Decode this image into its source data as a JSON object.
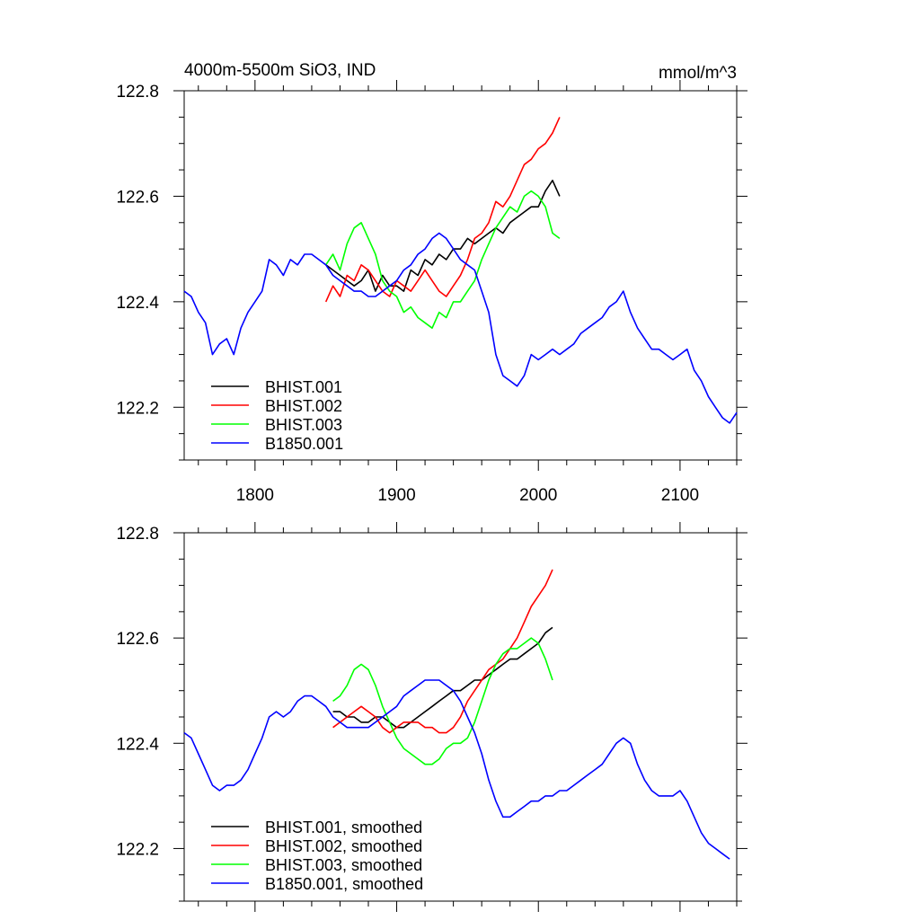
{
  "figure": {
    "title_left": "4000m-5500m SiO3, IND",
    "title_right": "mmol/m^3"
  },
  "chart_data": [
    {
      "type": "line",
      "xlim": [
        1750,
        2140
      ],
      "ylim": [
        122.1,
        122.8
      ],
      "xticks": [
        1800,
        1900,
        2000,
        2100
      ],
      "xtick_labels": [
        "1800",
        "1900",
        "2000",
        "2100"
      ],
      "yticks": [
        122.2,
        122.4,
        122.6,
        122.8
      ],
      "ytick_labels": [
        "122.2",
        "122.4",
        "122.6",
        "122.8"
      ],
      "legend_position": "bottom-left",
      "series": [
        {
          "name": "BHIST.001",
          "color": "#000000",
          "x": [
            1850,
            1855,
            1860,
            1865,
            1870,
            1875,
            1880,
            1885,
            1890,
            1895,
            1900,
            1905,
            1910,
            1915,
            1920,
            1925,
            1930,
            1935,
            1940,
            1945,
            1950,
            1955,
            1960,
            1965,
            1970,
            1975,
            1980,
            1985,
            1990,
            1995,
            2000,
            2005,
            2010,
            2015
          ],
          "y": [
            122.47,
            122.46,
            122.45,
            122.44,
            122.43,
            122.44,
            122.46,
            122.42,
            122.45,
            122.43,
            122.43,
            122.42,
            122.46,
            122.45,
            122.48,
            122.47,
            122.49,
            122.48,
            122.5,
            122.5,
            122.52,
            122.51,
            122.52,
            122.53,
            122.54,
            122.53,
            122.55,
            122.56,
            122.57,
            122.58,
            122.58,
            122.61,
            122.63,
            122.6
          ]
        },
        {
          "name": "BHIST.002",
          "color": "#ff0000",
          "x": [
            1850,
            1855,
            1860,
            1865,
            1870,
            1875,
            1880,
            1885,
            1890,
            1895,
            1900,
            1905,
            1910,
            1915,
            1920,
            1925,
            1930,
            1935,
            1940,
            1945,
            1950,
            1955,
            1960,
            1965,
            1970,
            1975,
            1980,
            1985,
            1990,
            1995,
            2000,
            2005,
            2010,
            2015
          ],
          "y": [
            122.4,
            122.43,
            122.41,
            122.45,
            122.44,
            122.47,
            122.46,
            122.44,
            122.42,
            122.41,
            122.44,
            122.43,
            122.42,
            122.44,
            122.46,
            122.44,
            122.42,
            122.41,
            122.43,
            122.45,
            122.48,
            122.52,
            122.53,
            122.55,
            122.59,
            122.58,
            122.6,
            122.63,
            122.66,
            122.67,
            122.69,
            122.7,
            122.72,
            122.75
          ]
        },
        {
          "name": "BHIST.003",
          "color": "#00ff00",
          "x": [
            1850,
            1855,
            1860,
            1865,
            1870,
            1875,
            1880,
            1885,
            1890,
            1895,
            1900,
            1905,
            1910,
            1915,
            1920,
            1925,
            1930,
            1935,
            1940,
            1945,
            1950,
            1955,
            1960,
            1965,
            1970,
            1975,
            1980,
            1985,
            1990,
            1995,
            2000,
            2005,
            2010,
            2015
          ],
          "y": [
            122.47,
            122.49,
            122.46,
            122.51,
            122.54,
            122.55,
            122.52,
            122.49,
            122.44,
            122.42,
            122.41,
            122.38,
            122.39,
            122.37,
            122.36,
            122.35,
            122.38,
            122.37,
            122.4,
            122.4,
            122.42,
            122.44,
            122.48,
            122.51,
            122.54,
            122.56,
            122.58,
            122.57,
            122.6,
            122.61,
            122.6,
            122.58,
            122.53,
            122.52
          ]
        },
        {
          "name": "B1850.001",
          "color": "#0000ff",
          "x": [
            1750,
            1755,
            1760,
            1765,
            1770,
            1775,
            1780,
            1785,
            1790,
            1795,
            1800,
            1805,
            1810,
            1815,
            1820,
            1825,
            1830,
            1835,
            1840,
            1845,
            1850,
            1855,
            1860,
            1865,
            1870,
            1875,
            1880,
            1885,
            1890,
            1895,
            1900,
            1905,
            1910,
            1915,
            1920,
            1925,
            1930,
            1935,
            1940,
            1945,
            1950,
            1955,
            1960,
            1965,
            1970,
            1975,
            1980,
            1985,
            1990,
            1995,
            2000,
            2005,
            2010,
            2015,
            2020,
            2025,
            2030,
            2035,
            2040,
            2045,
            2050,
            2055,
            2060,
            2065,
            2070,
            2075,
            2080,
            2085,
            2090,
            2095,
            2100,
            2105,
            2110,
            2115,
            2120,
            2125,
            2130,
            2135,
            2140
          ],
          "y": [
            122.42,
            122.41,
            122.38,
            122.36,
            122.3,
            122.32,
            122.33,
            122.3,
            122.35,
            122.38,
            122.4,
            122.42,
            122.48,
            122.47,
            122.45,
            122.48,
            122.47,
            122.49,
            122.49,
            122.48,
            122.47,
            122.45,
            122.44,
            122.43,
            122.42,
            122.42,
            122.41,
            122.41,
            122.42,
            122.43,
            122.44,
            122.46,
            122.47,
            122.49,
            122.5,
            122.52,
            122.53,
            122.52,
            122.5,
            122.48,
            122.47,
            122.46,
            122.42,
            122.38,
            122.3,
            122.26,
            122.25,
            122.24,
            122.26,
            122.3,
            122.29,
            122.3,
            122.31,
            122.3,
            122.31,
            122.32,
            122.34,
            122.35,
            122.36,
            122.37,
            122.39,
            122.4,
            122.42,
            122.38,
            122.35,
            122.33,
            122.31,
            122.31,
            122.3,
            122.29,
            122.3,
            122.31,
            122.27,
            122.25,
            122.22,
            122.2,
            122.18,
            122.17,
            122.19
          ]
        }
      ]
    },
    {
      "type": "line",
      "xlim": [
        1750,
        2140
      ],
      "ylim": [
        122.1,
        122.8
      ],
      "xticks": [
        1800,
        1900,
        2000,
        2100
      ],
      "yticks": [
        122.2,
        122.4,
        122.6,
        122.8
      ],
      "ytick_labels": [
        "122.2",
        "122.4",
        "122.6",
        "122.8"
      ],
      "legend_position": "bottom-left",
      "series": [
        {
          "name": "BHIST.001, smoothed",
          "color": "#000000",
          "x": [
            1855,
            1860,
            1865,
            1870,
            1875,
            1880,
            1885,
            1890,
            1895,
            1900,
            1905,
            1910,
            1915,
            1920,
            1925,
            1930,
            1935,
            1940,
            1945,
            1950,
            1955,
            1960,
            1965,
            1970,
            1975,
            1980,
            1985,
            1990,
            1995,
            2000,
            2005,
            2010
          ],
          "y": [
            122.46,
            122.46,
            122.45,
            122.45,
            122.44,
            122.44,
            122.45,
            122.45,
            122.44,
            122.43,
            122.43,
            122.44,
            122.45,
            122.46,
            122.47,
            122.48,
            122.49,
            122.5,
            122.5,
            122.51,
            122.52,
            122.52,
            122.53,
            122.54,
            122.55,
            122.56,
            122.56,
            122.57,
            122.58,
            122.59,
            122.61,
            122.62
          ]
        },
        {
          "name": "BHIST.002, smoothed",
          "color": "#ff0000",
          "x": [
            1855,
            1860,
            1865,
            1870,
            1875,
            1880,
            1885,
            1890,
            1895,
            1900,
            1905,
            1910,
            1915,
            1920,
            1925,
            1930,
            1935,
            1940,
            1945,
            1950,
            1955,
            1960,
            1965,
            1970,
            1975,
            1980,
            1985,
            1990,
            1995,
            2000,
            2005,
            2010
          ],
          "y": [
            122.43,
            122.44,
            122.45,
            122.46,
            122.47,
            122.46,
            122.45,
            122.43,
            122.42,
            122.43,
            122.44,
            122.44,
            122.44,
            122.43,
            122.43,
            122.42,
            122.42,
            122.43,
            122.45,
            122.48,
            122.5,
            122.52,
            122.54,
            122.55,
            122.56,
            122.58,
            122.6,
            122.63,
            122.66,
            122.68,
            122.7,
            122.73
          ]
        },
        {
          "name": "BHIST.003, smoothed",
          "color": "#00ff00",
          "x": [
            1855,
            1860,
            1865,
            1870,
            1875,
            1880,
            1885,
            1890,
            1895,
            1900,
            1905,
            1910,
            1915,
            1920,
            1925,
            1930,
            1935,
            1940,
            1945,
            1950,
            1955,
            1960,
            1965,
            1970,
            1975,
            1980,
            1985,
            1990,
            1995,
            2000,
            2005,
            2010
          ],
          "y": [
            122.48,
            122.49,
            122.51,
            122.54,
            122.55,
            122.54,
            122.51,
            122.47,
            122.44,
            122.41,
            122.39,
            122.38,
            122.37,
            122.36,
            122.36,
            122.37,
            122.39,
            122.4,
            122.4,
            122.41,
            122.44,
            122.48,
            122.52,
            122.55,
            122.57,
            122.58,
            122.58,
            122.59,
            122.6,
            122.59,
            122.56,
            122.52
          ]
        },
        {
          "name": "B1850.001, smoothed",
          "color": "#0000ff",
          "x": [
            1750,
            1755,
            1760,
            1765,
            1770,
            1775,
            1780,
            1785,
            1790,
            1795,
            1800,
            1805,
            1810,
            1815,
            1820,
            1825,
            1830,
            1835,
            1840,
            1845,
            1850,
            1855,
            1860,
            1865,
            1870,
            1875,
            1880,
            1885,
            1890,
            1895,
            1900,
            1905,
            1910,
            1915,
            1920,
            1925,
            1930,
            1935,
            1940,
            1945,
            1950,
            1955,
            1960,
            1965,
            1970,
            1975,
            1980,
            1985,
            1990,
            1995,
            2000,
            2005,
            2010,
            2015,
            2020,
            2025,
            2030,
            2035,
            2040,
            2045,
            2050,
            2055,
            2060,
            2065,
            2070,
            2075,
            2080,
            2085,
            2090,
            2095,
            2100,
            2105,
            2110,
            2115,
            2120,
            2125,
            2130,
            2135
          ],
          "y": [
            122.42,
            122.41,
            122.38,
            122.35,
            122.32,
            122.31,
            122.32,
            122.32,
            122.33,
            122.35,
            122.38,
            122.41,
            122.45,
            122.46,
            122.45,
            122.46,
            122.48,
            122.49,
            122.49,
            122.48,
            122.47,
            122.45,
            122.44,
            122.43,
            122.43,
            122.43,
            122.43,
            122.44,
            122.45,
            122.46,
            122.47,
            122.49,
            122.5,
            122.51,
            122.52,
            122.52,
            122.52,
            122.51,
            122.5,
            122.48,
            122.45,
            122.42,
            122.38,
            122.33,
            122.29,
            122.26,
            122.26,
            122.27,
            122.28,
            122.29,
            122.29,
            122.3,
            122.3,
            122.31,
            122.31,
            122.32,
            122.33,
            122.34,
            122.35,
            122.36,
            122.38,
            122.4,
            122.41,
            122.4,
            122.36,
            122.33,
            122.31,
            122.3,
            122.3,
            122.3,
            122.31,
            122.29,
            122.26,
            122.23,
            122.21,
            122.2,
            122.19,
            122.18
          ]
        }
      ]
    }
  ]
}
